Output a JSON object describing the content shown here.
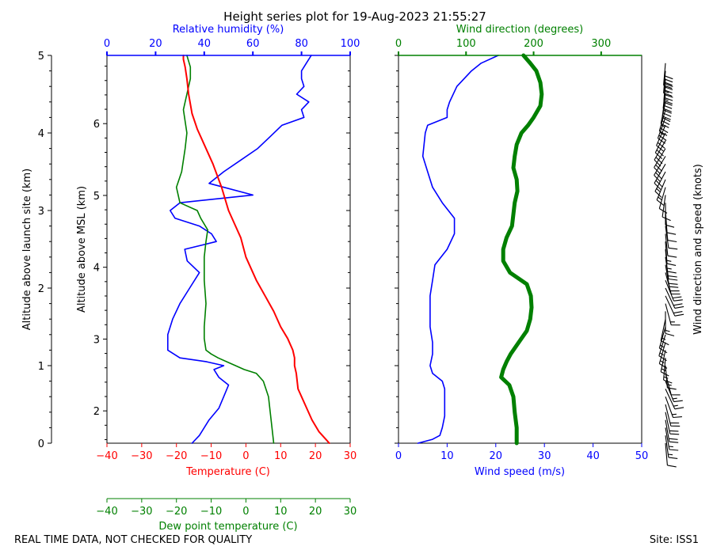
{
  "chart_data": {
    "type": "line",
    "title": "Height series plot for 19-Aug-2023 21:55:27",
    "footer_left": "REAL TIME DATA, NOT CHECKED FOR QUALITY",
    "footer_right": "Site: ISS1",
    "colors": {
      "temperature": "#ff0000",
      "dewpoint": "#008000",
      "rh": "#0000ff",
      "wind_speed": "#0000ff",
      "wind_dir": "#008000",
      "barbs": "#000000"
    },
    "left_panel": {
      "ylabel_outer": "Altitude above launch site (km)",
      "ylim_outer": [
        0,
        5
      ],
      "yticks_outer": [
        0,
        1,
        2,
        3,
        4,
        5
      ],
      "ylabel_inner": "Altitude above MSL (km)",
      "ylim_inner": [
        1.55,
        6.95
      ],
      "yticks_inner": [
        2,
        3,
        4,
        5,
        6
      ],
      "x_bottom": {
        "label": "Temperature (C)",
        "lim": [
          -40,
          30
        ],
        "ticks": [
          -40,
          -30,
          -20,
          -10,
          0,
          10,
          20,
          30
        ]
      },
      "x_top": {
        "label": "Relative humidity (%)",
        "lim": [
          0,
          100
        ],
        "ticks": [
          0,
          20,
          40,
          60,
          80,
          100
        ]
      },
      "x_extra": {
        "label": "Dew point temperature (C)",
        "lim": [
          -40,
          30
        ],
        "ticks": [
          -40,
          -30,
          -20,
          -10,
          0,
          10,
          20,
          30
        ]
      },
      "series": [
        {
          "name": "Temperature",
          "unit": "C",
          "altitude_km": [
            0.0,
            0.05,
            0.15,
            0.3,
            0.5,
            0.7,
            0.9,
            1.0,
            1.1,
            1.2,
            1.35,
            1.5,
            1.7,
            1.9,
            2.1,
            2.4,
            2.65,
            2.8,
            3.0,
            3.3,
            3.6,
            3.85,
            4.05,
            4.25,
            4.5,
            4.7,
            4.85,
            4.95,
            5.0
          ],
          "values": [
            24,
            23,
            21,
            19,
            17,
            15,
            14.5,
            14,
            14,
            13.5,
            12,
            10,
            8,
            5.5,
            3,
            0,
            -1.5,
            -3,
            -5,
            -7,
            -9.5,
            -12,
            -14,
            -15.5,
            -16.5,
            -17,
            -17.5,
            -18,
            -18
          ]
        },
        {
          "name": "Dew point",
          "unit": "C",
          "altitude_km": [
            0.0,
            0.2,
            0.4,
            0.6,
            0.8,
            0.9,
            0.95,
            1.0,
            1.05,
            1.1,
            1.15,
            1.2,
            1.35,
            1.5,
            1.8,
            2.1,
            2.4,
            2.6,
            2.75,
            2.9,
            3.0,
            3.1,
            3.3,
            3.5,
            3.8,
            4.0,
            4.3,
            4.5,
            4.7,
            4.85,
            5.0
          ],
          "values": [
            8,
            7.5,
            7,
            6.5,
            5,
            3,
            -0.5,
            -3,
            -5.5,
            -8,
            -10,
            -11.5,
            -12,
            -12,
            -11.5,
            -12,
            -12,
            -11.5,
            -11,
            -13,
            -14,
            -19,
            -20,
            -18.5,
            -17.5,
            -17,
            -18,
            -17,
            -16,
            -16,
            -17
          ]
        },
        {
          "name": "Relative humidity",
          "unit": "%",
          "altitude_km": [
            0.0,
            0.1,
            0.3,
            0.45,
            0.6,
            0.75,
            0.85,
            0.95,
            1.0,
            1.05,
            1.1,
            1.2,
            1.4,
            1.6,
            1.8,
            2.0,
            2.2,
            2.35,
            2.5,
            2.6,
            2.7,
            2.8,
            2.9,
            3.0,
            3.1,
            3.2,
            3.35,
            3.5,
            3.65,
            3.8,
            3.95,
            4.1,
            4.2,
            4.3,
            4.4,
            4.5,
            4.6,
            4.7,
            4.8,
            4.9,
            5.0
          ],
          "values": [
            35,
            38,
            42,
            46,
            48,
            50,
            46,
            44,
            48,
            41,
            30,
            25,
            25,
            27,
            30,
            34,
            38,
            33,
            32,
            45,
            43,
            38,
            28,
            26,
            30,
            60,
            42,
            48,
            55,
            62,
            67,
            72,
            81,
            80,
            83,
            78,
            81,
            80,
            80,
            82,
            84
          ]
        }
      ]
    },
    "right_panel": {
      "x_bottom": {
        "label": "Wind speed (m/s)",
        "lim": [
          0,
          50
        ],
        "ticks": [
          0,
          10,
          20,
          30,
          40,
          50
        ]
      },
      "x_top": {
        "label": "Wind direction (degrees)",
        "lim": [
          0,
          360
        ],
        "ticks": [
          0,
          100,
          200,
          300
        ]
      },
      "barb_label": "Wind direction and speed (knots)",
      "series": [
        {
          "name": "Wind speed",
          "unit": "m/s",
          "altitude_km": [
            0.0,
            0.05,
            0.1,
            0.2,
            0.35,
            0.5,
            0.6,
            0.7,
            0.8,
            0.9,
            1.0,
            1.15,
            1.3,
            1.5,
            1.7,
            1.9,
            2.1,
            2.3,
            2.5,
            2.7,
            2.9,
            3.1,
            3.3,
            3.5,
            3.7,
            4.0,
            4.1,
            4.2,
            4.3,
            4.4,
            4.6,
            4.8,
            4.9,
            5.0
          ],
          "values": [
            4,
            7,
            8.5,
            9,
            9.5,
            9.5,
            9.5,
            9.5,
            9,
            7,
            6.5,
            7,
            7,
            6.5,
            6.5,
            6.5,
            7,
            7.5,
            10,
            11.5,
            11.5,
            9,
            7,
            6,
            5,
            5.5,
            6,
            10,
            10,
            10.5,
            12,
            15,
            17,
            20.5
          ]
        },
        {
          "name": "Wind direction",
          "unit": "degrees",
          "altitude_km": [
            0.0,
            0.2,
            0.4,
            0.6,
            0.75,
            0.85,
            0.95,
            1.05,
            1.15,
            1.3,
            1.45,
            1.6,
            1.75,
            1.9,
            2.05,
            2.2,
            2.35,
            2.5,
            2.65,
            2.8,
            2.95,
            3.1,
            3.25,
            3.4,
            3.55,
            3.7,
            3.85,
            4.0,
            4.1,
            4.2,
            4.35,
            4.5,
            4.65,
            4.8,
            4.9,
            5.0
          ],
          "values": [
            175,
            175,
            172,
            170,
            164,
            152,
            155,
            160,
            166,
            178,
            190,
            195,
            197,
            196,
            190,
            165,
            155,
            155,
            160,
            168,
            170,
            172,
            176,
            175,
            170,
            172,
            175,
            182,
            192,
            200,
            210,
            212,
            210,
            204,
            195,
            185
          ]
        }
      ],
      "barbs": {
        "altitude_km": [
          0.0,
          0.1,
          0.2,
          0.3,
          0.4,
          0.5,
          0.6,
          0.7,
          0.8,
          0.9,
          1.0,
          1.1,
          1.2,
          1.3,
          1.4,
          1.5,
          1.6,
          1.7,
          1.8,
          1.9,
          2.0,
          2.1,
          2.2,
          2.3,
          2.4,
          2.5,
          2.6,
          2.7,
          2.8,
          2.9,
          3.0,
          3.1,
          3.2,
          3.3,
          3.4,
          3.5,
          3.6,
          3.7,
          3.8,
          3.9,
          4.0,
          4.1,
          4.2,
          4.3,
          4.4,
          4.5,
          4.6,
          4.7,
          4.8,
          4.9
        ],
        "speed_kt": [
          10,
          15,
          17,
          18,
          18,
          18,
          17,
          15,
          13,
          12,
          13,
          13,
          13,
          13,
          13,
          13,
          14,
          15,
          17,
          19,
          20,
          22,
          21,
          20,
          19,
          15,
          13,
          12,
          11,
          10,
          10,
          10,
          11,
          12,
          13,
          15,
          18,
          19,
          19,
          19,
          20,
          22,
          25,
          27,
          30,
          32,
          35,
          35,
          38,
          40
        ],
        "direction_deg": [
          175,
          172,
          170,
          170,
          168,
          166,
          160,
          155,
          158,
          165,
          175,
          185,
          192,
          196,
          197,
          196,
          192,
          180,
          165,
          155,
          155,
          158,
          165,
          170,
          172,
          175,
          176,
          174,
          172,
          174,
          176,
          180,
          188,
          196,
          203,
          208,
          210,
          211,
          211,
          210,
          207,
          204,
          200,
          196,
          192,
          188,
          186,
          184,
          185,
          185
        ]
      }
    }
  }
}
